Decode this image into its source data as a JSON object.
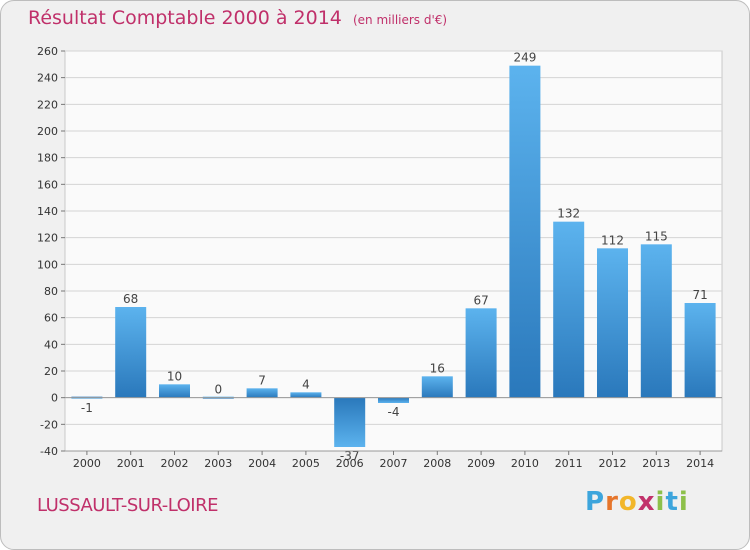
{
  "chart_data": {
    "type": "bar",
    "title": "Résultat Comptable 2000 à 2014",
    "subtitle": "(en milliers d'€)",
    "categories": [
      "2000",
      "2001",
      "2002",
      "2003",
      "2004",
      "2005",
      "2006",
      "2007",
      "2008",
      "2009",
      "2010",
      "2011",
      "2012",
      "2013",
      "2014"
    ],
    "values": [
      -1,
      68,
      10,
      0,
      7,
      4,
      -37,
      -4,
      16,
      67,
      249,
      132,
      112,
      115,
      71
    ],
    "value_labels": [
      "-1",
      "68",
      "10",
      "0",
      "7",
      "4",
      "-37",
      "-4",
      "16",
      "67",
      "249",
      "132",
      "112",
      "115",
      "71"
    ],
    "ylim": [
      -40,
      260
    ],
    "yticks": [
      -40,
      -20,
      0,
      20,
      40,
      60,
      80,
      100,
      120,
      140,
      160,
      180,
      200,
      220,
      240,
      260
    ],
    "grid": true,
    "xlabel": "",
    "ylabel": "",
    "bar_color": "#3a8ed3"
  },
  "footer": {
    "town": "LUSSAULT-SUR-LOIRE",
    "logo_letters": [
      "P",
      "r",
      "o",
      "x",
      "i",
      "t",
      "i"
    ],
    "logo_colors": [
      "#3da5dc",
      "#e6762c",
      "#f2b62a",
      "#c2326b",
      "#8dc04a",
      "#3da5dc",
      "#8dc04a"
    ]
  }
}
